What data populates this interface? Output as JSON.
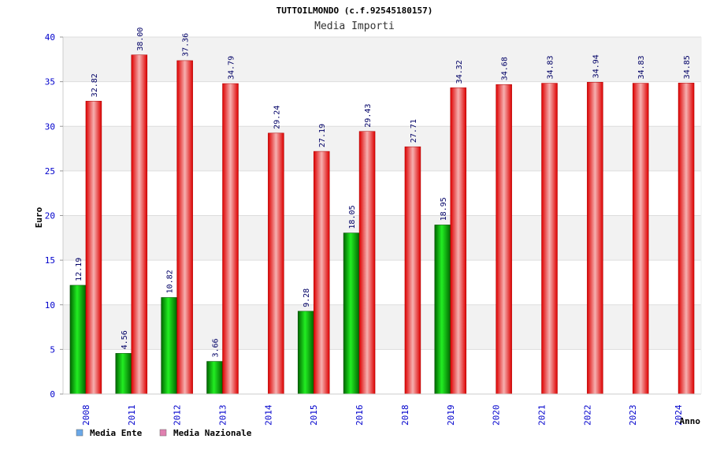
{
  "chart_data": {
    "type": "bar",
    "title": "TUTTOILMONDO (c.f.92545180157)",
    "subtitle": "Media Importi",
    "ylabel": "Euro",
    "xlabel": "Anno",
    "ylim": [
      0,
      40
    ],
    "yticks": [
      0,
      5,
      10,
      15,
      20,
      25,
      30,
      35,
      40
    ],
    "grid": true,
    "legend_position": "bottom-left",
    "categories": [
      "2008",
      "2011",
      "2012",
      "2013",
      "2014",
      "2015",
      "2016",
      "2018",
      "2019",
      "2020",
      "2021",
      "2022",
      "2023",
      "2024"
    ],
    "series": [
      {
        "name": "Media Ente",
        "legend_color": "#6aa8e8",
        "bar_color": "#00b000",
        "values": [
          12.19,
          4.56,
          10.82,
          3.66,
          null,
          9.28,
          18.05,
          null,
          18.95,
          null,
          null,
          null,
          null,
          null
        ],
        "labels": [
          "12.19",
          "4.56",
          "10.82",
          "3.66",
          "",
          "9.28",
          "18.05",
          "",
          "18.95",
          "",
          "",
          "",
          "",
          ""
        ]
      },
      {
        "name": "Media Nazionale",
        "legend_color": "#e080b0",
        "bar_color": "#ee1111",
        "values": [
          32.82,
          38.0,
          37.36,
          34.79,
          29.24,
          27.19,
          29.43,
          27.71,
          34.32,
          34.68,
          34.83,
          34.94,
          34.83,
          34.85
        ],
        "labels": [
          "32.82",
          "38.00",
          "37.36",
          "34.79",
          "29.24",
          "27.19",
          "29.43",
          "27.71",
          "34.32",
          "34.68",
          "34.83",
          "34.94",
          "34.83",
          "34.85"
        ]
      }
    ]
  }
}
